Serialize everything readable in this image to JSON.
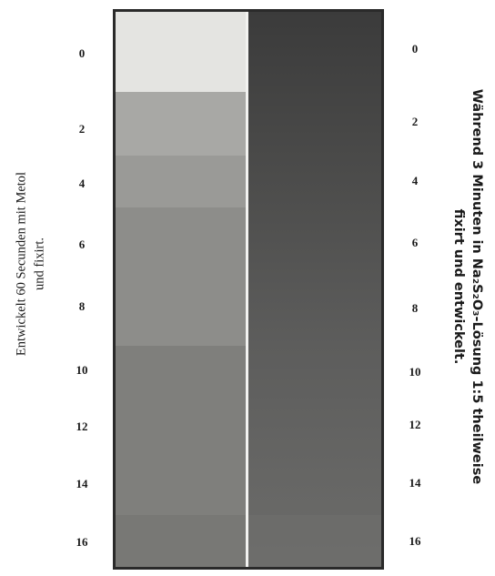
{
  "left_caption": [
    "Entwickelt 60 Secunden mit Metol",
    "und fixirt."
  ],
  "right_caption": [
    "Während 3 Minuten in Na₂S₂O₃-Lösung 1:5 theilweise",
    "fixirt und entwickelt."
  ],
  "left_scale": [
    "0",
    "2",
    "4",
    "6",
    "8",
    "10",
    "12",
    "14",
    "16"
  ],
  "right_scale": [
    "0",
    "2",
    "4",
    "6",
    "8",
    "10",
    "12",
    "14",
    "16"
  ]
}
